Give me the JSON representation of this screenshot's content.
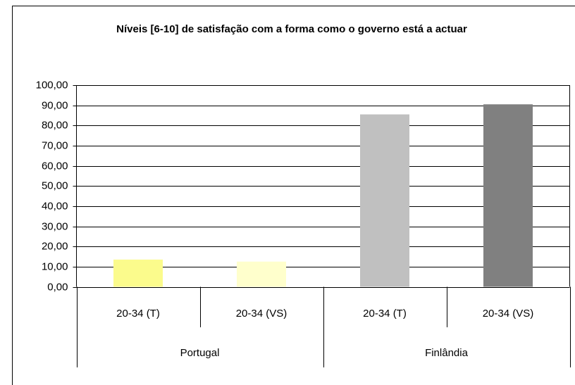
{
  "chart_data": {
    "type": "bar",
    "title": "Níveis [6-10] de satisfação com a forma como o governo está a actuar",
    "categories": [
      "20-34 (T)",
      "20-34 (VS)",
      "20-34 (T)",
      "20-34 (VS)"
    ],
    "groups": [
      "Portugal",
      "Finlândia"
    ],
    "values": [
      13.5,
      12.5,
      85.5,
      90.5
    ],
    "colors": [
      "#fbfb8c",
      "#ffffcc",
      "#c0c0c0",
      "#808080"
    ],
    "ylim": [
      0,
      100
    ],
    "yticks": [
      {
        "value": 0,
        "label": "0,00"
      },
      {
        "value": 10,
        "label": "10,00"
      },
      {
        "value": 20,
        "label": "20,00"
      },
      {
        "value": 30,
        "label": "30,00"
      },
      {
        "value": 40,
        "label": "40,00"
      },
      {
        "value": 50,
        "label": "50,00"
      },
      {
        "value": 60,
        "label": "60,00"
      },
      {
        "value": 70,
        "label": "70,00"
      },
      {
        "value": 80,
        "label": "80,00"
      },
      {
        "value": 90,
        "label": "90,00"
      },
      {
        "value": 100,
        "label": "100,00"
      }
    ],
    "grid": true
  }
}
